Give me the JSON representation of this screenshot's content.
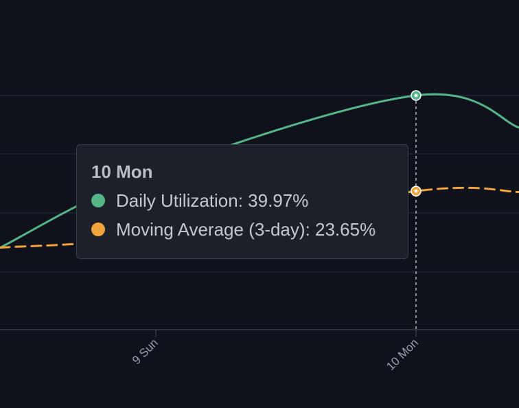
{
  "chart_data": {
    "type": "line",
    "x_ticks": [
      "9 Sun",
      "10 Mon"
    ],
    "series": [
      {
        "name": "Daily Utilization",
        "color": "#54b688",
        "style": "solid",
        "points": [
          {
            "x": "8.5",
            "y": 14.0
          },
          {
            "x": "9 Sun",
            "y": 27.0
          },
          {
            "x": "10 Mon",
            "y": 39.97
          },
          {
            "x": "10.4",
            "y": 34.5
          }
        ]
      },
      {
        "name": "Moving Average (3-day)",
        "color": "#f0a43c",
        "style": "dashed",
        "points": [
          {
            "x": "8.5",
            "y": 14.0
          },
          {
            "x": "9 Sun",
            "y": 16.0
          },
          {
            "x": "10 Mon",
            "y": 23.65
          },
          {
            "x": "10.4",
            "y": 23.5
          }
        ]
      }
    ],
    "grid": true,
    "hover": {
      "x": "10 Mon",
      "title": "10 Mon",
      "rows": [
        {
          "label": "Daily Utilization: 39.97%",
          "color": "#54b688"
        },
        {
          "label": "Moving Average (3-day): 23.65%",
          "color": "#f0a43c"
        }
      ]
    }
  }
}
